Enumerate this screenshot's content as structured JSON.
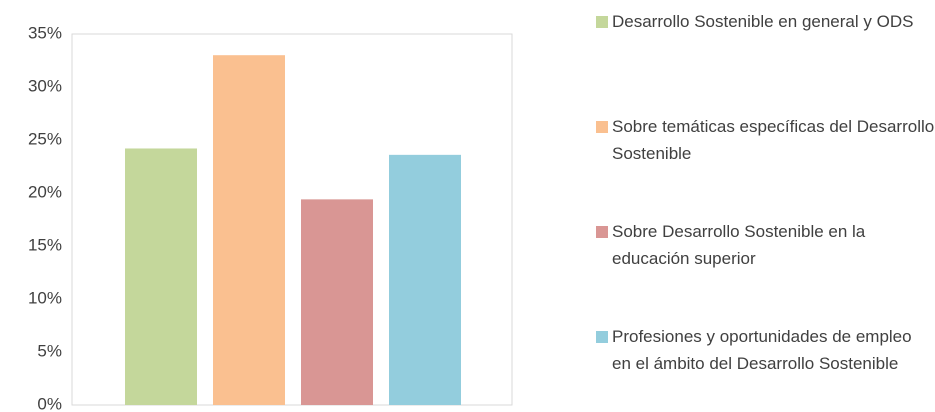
{
  "chart_data": {
    "type": "bar",
    "series": [
      {
        "name": "Desarrollo Sostenible en general y ODS",
        "color": "#c4d79b",
        "values": [
          24.2
        ]
      },
      {
        "name": "Sobre temáticas específicas del Desarrollo Sostenible",
        "color": "#fac090",
        "values": [
          33
        ]
      },
      {
        "name": "Sobre Desarrollo Sostenible en la educación superior",
        "color": "#d99694",
        "values": [
          19.4
        ]
      },
      {
        "name": "Profesiones y oportunidades de empleo en el ámbito del Desarrollo Sostenible",
        "color": "#93cddd",
        "values": [
          23.6
        ]
      }
    ],
    "ylim": [
      0,
      35
    ],
    "yticks": [
      {
        "value": 0,
        "label": "0%"
      },
      {
        "value": 5,
        "label": "5%"
      },
      {
        "value": 10,
        "label": "10%"
      },
      {
        "value": 15,
        "label": "15%"
      },
      {
        "value": 20,
        "label": "20%"
      },
      {
        "value": 25,
        "label": "25%"
      },
      {
        "value": 30,
        "label": "30%"
      },
      {
        "value": 35,
        "label": "35%"
      }
    ],
    "grid": false,
    "legend": "right"
  }
}
